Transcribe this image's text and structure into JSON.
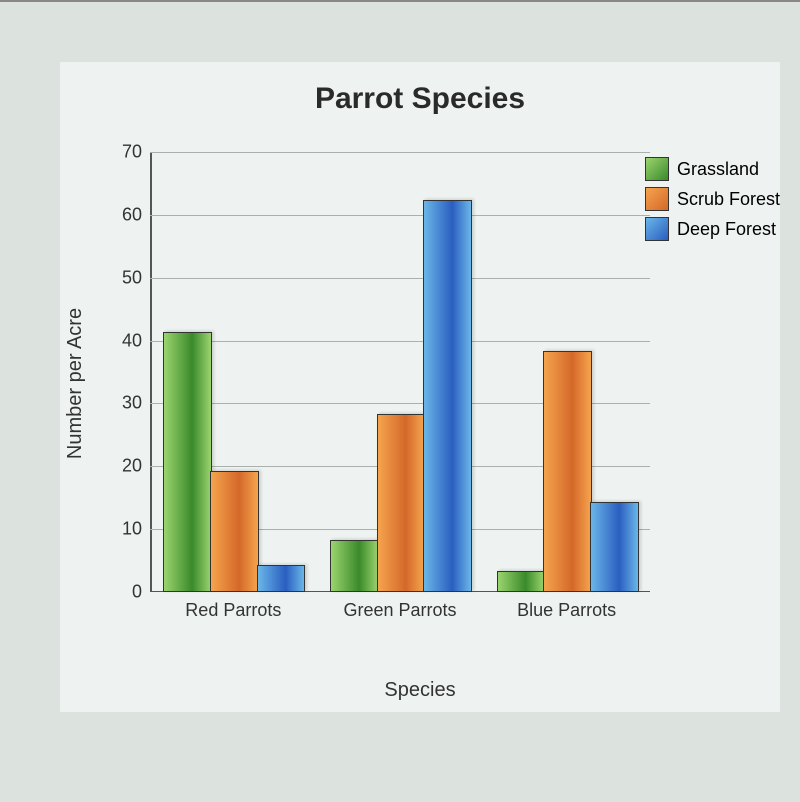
{
  "chart": {
    "type": "bar",
    "title": "Parrot Species",
    "title_fontsize": 30,
    "xlabel": "Species",
    "ylabel": "Number per Acre",
    "label_fontsize": 20,
    "tick_fontsize": 18,
    "ylim": [
      0,
      70
    ],
    "ytick_step": 10,
    "background_color": "#eef3f2",
    "grid_color": "#aab0ac",
    "categories": [
      "Red Parrots",
      "Green Parrots",
      "Blue Parrots"
    ],
    "series": [
      {
        "name": "Grassland",
        "color_light": "#9bd46e",
        "color_dark": "#3a8a2b",
        "values": [
          41,
          8,
          3
        ]
      },
      {
        "name": "Scrub Forest",
        "color_light": "#f5a44d",
        "color_dark": "#d4682a",
        "values": [
          19,
          28,
          38
        ]
      },
      {
        "name": "Deep Forest",
        "color_light": "#6ab6e8",
        "color_dark": "#2a5ec0",
        "values": [
          4,
          62,
          14
        ]
      }
    ],
    "group_spacing": 0.35,
    "bar_rel_width": 0.28
  }
}
